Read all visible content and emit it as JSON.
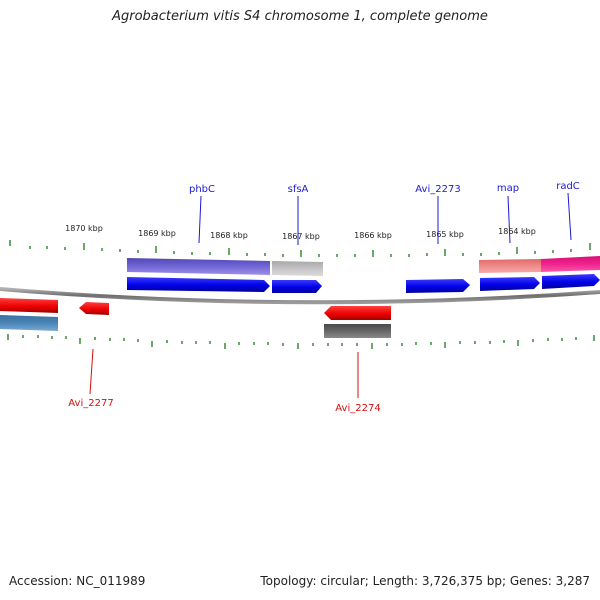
{
  "title": "Agrobacterium vitis S4 chromosome 1, complete genome",
  "footer": {
    "accession": "Accession: NC_011989",
    "summary": "Topology: circular; Length: 3,726,375 bp; Genes: 3,287"
  },
  "scale_labels": [
    "1870 kbp",
    "1869 kbp",
    "1868 kbp",
    "1867 kbp",
    "1866 kbp",
    "1865 kbp",
    "1864 kbp"
  ],
  "gene_labels": {
    "top": [
      "phbC",
      "sfsA",
      "Avi_2273",
      "map",
      "radC"
    ],
    "bottom": [
      "Avi_2277",
      "Avi_2274"
    ]
  },
  "colors": {
    "forward_cds": "#0000ee",
    "reverse_cds": "#ee0000",
    "tick": "#1a7a1a",
    "backbone": "#888888",
    "gene_label_forward": "#1a1ad6",
    "gene_label_reverse": "#d60e0e",
    "feature_phbC": "#7366d6",
    "feature_sfsA": "#c0c0c0",
    "feature_map": "#f08080",
    "feature_radC": "#ee1a8a",
    "feature_left_reverse": "#4a86b8",
    "feature_Avi_2274": "#666666"
  }
}
